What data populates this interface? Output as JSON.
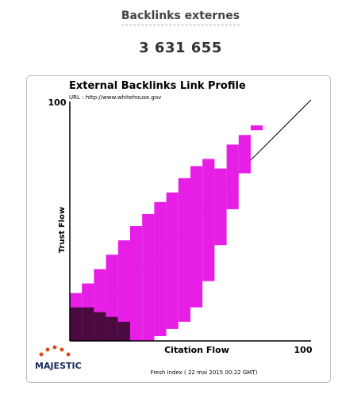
{
  "header": {
    "title": "Backlinks externes",
    "value": "3 631 655"
  },
  "chart_data": {
    "type": "range",
    "title": "External Backlinks Link Profile",
    "subtitle": "URL : http://www.whitehouse.gov",
    "xlabel": "Citation Flow",
    "ylabel": "Trust Flow",
    "x": [
      2.5,
      7.5,
      12.5,
      17.5,
      22.5,
      27.5,
      32.5,
      37.5,
      42.5,
      47.5,
      52.5,
      57.5,
      62.5,
      67.5,
      72.5,
      77.5
    ],
    "low": [
      0,
      0,
      0,
      0,
      0,
      0,
      0,
      2,
      5,
      8,
      14,
      25,
      40,
      55,
      70,
      88
    ],
    "high": [
      20,
      24,
      30,
      36,
      42,
      48,
      53,
      58,
      62,
      68,
      73,
      76,
      72,
      82,
      86,
      90
    ],
    "color": "#e61ee6",
    "dense_high": [
      14,
      14,
      12,
      10,
      8,
      null,
      null,
      null,
      null,
      null,
      null,
      null,
      null,
      null,
      null,
      null
    ],
    "dense_color": "#4a0a40",
    "xlim": [
      0,
      100
    ],
    "ylim": [
      0,
      100
    ],
    "xticks": [
      100
    ],
    "yticks": [
      100
    ]
  },
  "logo": "MAJESTIC",
  "footer": "Fresh Index ( 22 mai 2015 00:22 GMT)"
}
